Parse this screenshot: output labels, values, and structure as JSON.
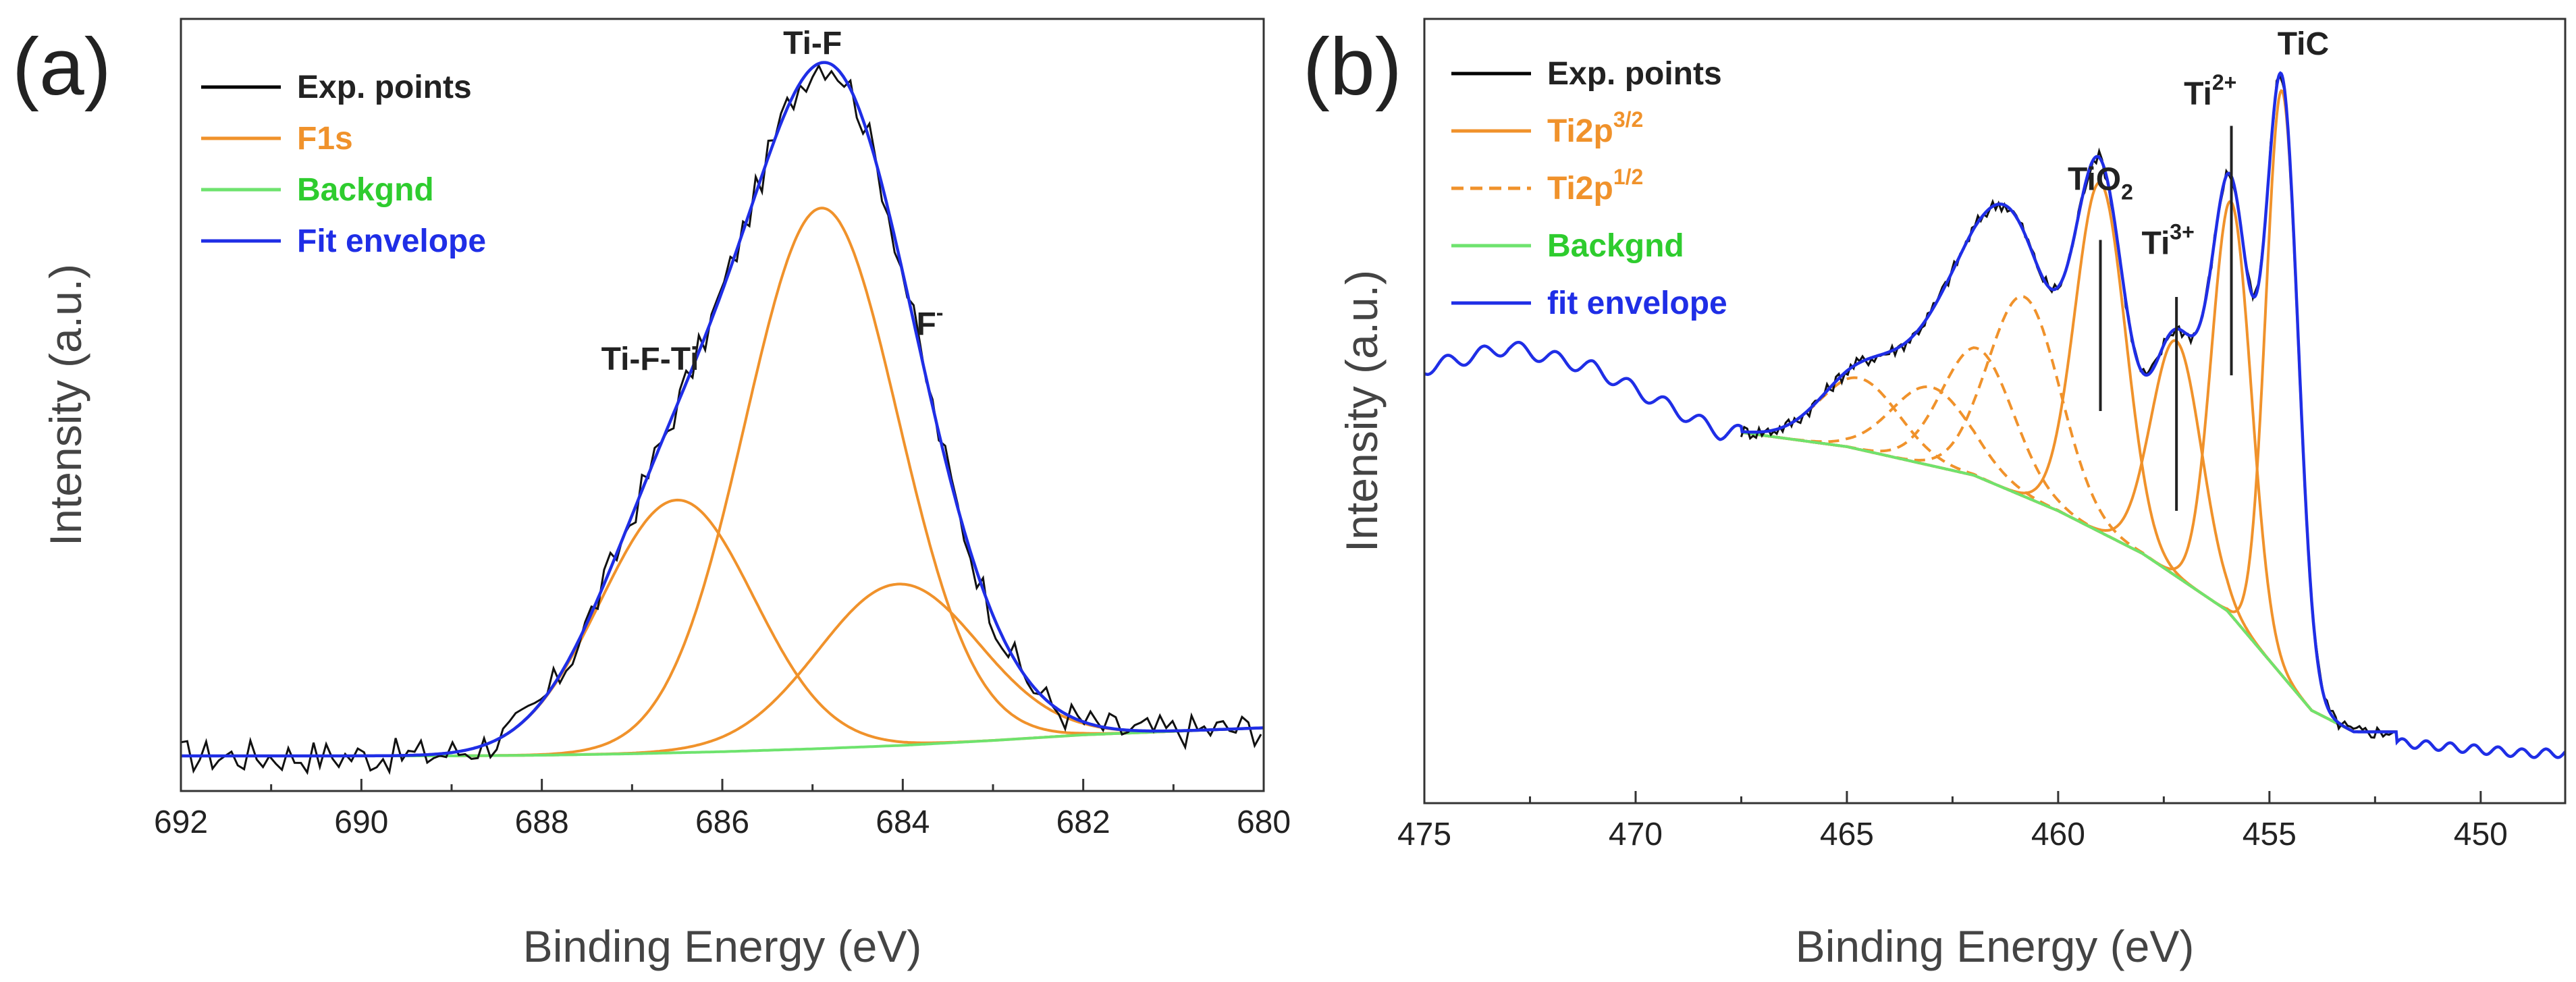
{
  "chart_data": [
    {
      "type": "line",
      "panel_label": "(a)",
      "xlabel": "Binding Energy (eV)",
      "ylabel": "Intensity (a.u.)",
      "xlim": [
        692,
        680
      ],
      "ylim": [
        -0.05,
        1.05
      ],
      "xticks": [
        692,
        690,
        688,
        686,
        684,
        682,
        680
      ],
      "x_reversed": true,
      "legend": [
        {
          "label": "Exp. points",
          "color": "#000000",
          "text_color": "#222222",
          "dashed": false
        },
        {
          "label": "F1s",
          "color": "#f0922b",
          "text_color": "#f0922b",
          "dashed": false
        },
        {
          "label": "Backgnd",
          "color": "#6ee36e",
          "text_color": "#2ecc2e",
          "dashed": false
        },
        {
          "label": "Fit envelope",
          "color": "#1f2ee6",
          "text_color": "#1f2ee6",
          "dashed": false
        }
      ],
      "colors": {
        "exp": "#111111",
        "component": "#f0922b",
        "background": "#6ee36e",
        "envelope": "#1f2ee6"
      },
      "background_curve": {
        "x": [
          692,
          689,
          688,
          687,
          686,
          685,
          684,
          683,
          682,
          680
        ],
        "y": [
          0.0,
          0.0,
          0.001,
          0.003,
          0.006,
          0.01,
          0.015,
          0.022,
          0.03,
          0.04
        ]
      },
      "components": [
        {
          "name": "Ti-F-Ti",
          "center": 686.5,
          "fwhm": 2.0,
          "height": 0.36
        },
        {
          "name": "Ti-F",
          "center": 684.9,
          "fwhm": 2.0,
          "height": 0.77
        },
        {
          "name": "F-",
          "center": 684.05,
          "fwhm": 2.1,
          "height": 0.23
        }
      ],
      "exp_noise": 0.025,
      "annotations": [
        {
          "text": "Ti-F-Ti",
          "sup": "",
          "x": 686.8,
          "y": 0.55
        },
        {
          "text": "Ti-F",
          "sup": "",
          "x": 685.0,
          "y": 1.0
        },
        {
          "text": "F",
          "sup": "-",
          "x": 683.7,
          "y": 0.6
        }
      ],
      "markers": []
    },
    {
      "type": "line",
      "panel_label": "(b)",
      "xlabel": "Binding Energy (eV)",
      "ylabel": "Intensity (a.u.)",
      "xlim": [
        475,
        448
      ],
      "ylim": [
        -0.05,
        1.05
      ],
      "xticks": [
        475,
        470,
        465,
        460,
        455,
        450
      ],
      "x_reversed": true,
      "legend": [
        {
          "label": "Exp. points",
          "color": "#000000",
          "text_color": "#222222",
          "dashed": false
        },
        {
          "label": "Ti2p",
          "sup": "3/2",
          "color": "#f0922b",
          "text_color": "#f0922b",
          "dashed": false
        },
        {
          "label": "Ti2p",
          "sup": "1/2",
          "color": "#f0922b",
          "text_color": "#f0922b",
          "dashed": true
        },
        {
          "label": "Backgnd",
          "color": "#6ee36e",
          "text_color": "#2ecc2e",
          "dashed": false
        },
        {
          "label": "fit envelope",
          "color": "#1f2ee6",
          "text_color": "#1f2ee6",
          "dashed": false
        }
      ],
      "colors": {
        "exp": "#111111",
        "component": "#f0922b",
        "background": "#6ee36e",
        "envelope": "#1f2ee6"
      },
      "background_curve": {
        "x": [
          467.5,
          465,
          462,
          460,
          458,
          456,
          455,
          454,
          453
        ],
        "y": [
          0.47,
          0.45,
          0.41,
          0.36,
          0.3,
          0.22,
          0.15,
          0.08,
          0.05
        ]
      },
      "envelope_left": {
        "x": [
          475,
          473,
          471,
          469,
          468
        ],
        "y": [
          0.56,
          0.59,
          0.56,
          0.5,
          0.47
        ]
      },
      "envelope_right": {
        "x": [
          453,
          451,
          449,
          448
        ],
        "y": [
          0.04,
          0.03,
          0.02,
          0.02
        ]
      },
      "components": [
        {
          "name": "TiC 3/2",
          "center": 454.7,
          "fwhm": 0.9,
          "height": 0.82,
          "dashed": false
        },
        {
          "name": "Ti2+ 3/2",
          "center": 455.9,
          "fwhm": 1.1,
          "height": 0.58,
          "dashed": false
        },
        {
          "name": "Ti3+ 3/2",
          "center": 457.2,
          "fwhm": 1.4,
          "height": 0.33,
          "dashed": false
        },
        {
          "name": "TiO2 3/2",
          "center": 459.0,
          "fwhm": 1.4,
          "height": 0.49,
          "dashed": false
        },
        {
          "name": "TiC 1/2",
          "center": 460.8,
          "fwhm": 2.0,
          "height": 0.28,
          "dashed": true
        },
        {
          "name": "Ti2+ 1/2",
          "center": 461.9,
          "fwhm": 2.0,
          "height": 0.18,
          "dashed": true
        },
        {
          "name": "Ti3+ 1/2",
          "center": 463.0,
          "fwhm": 2.2,
          "height": 0.11,
          "dashed": true
        },
        {
          "name": "TiO2 1/2",
          "center": 464.7,
          "fwhm": 2.2,
          "height": 0.1,
          "dashed": true
        }
      ],
      "exp_range": [
        467.5,
        452
      ],
      "exp_noise": 0.01,
      "annotations": [
        {
          "text": "TiC",
          "sup": "",
          "x": 454.2,
          "y": 1.0
        },
        {
          "text": "Ti",
          "sup": "2+",
          "x": 456.4,
          "y": 0.93
        },
        {
          "text": "Ti",
          "sup": "3+",
          "x": 457.4,
          "y": 0.72
        },
        {
          "text": "TiO",
          "sub": "2",
          "x": 459.0,
          "y": 0.81
        }
      ],
      "markers": [
        {
          "x": 459.0,
          "y1": 0.5,
          "y2": 0.74
        },
        {
          "x": 457.2,
          "y1": 0.36,
          "y2": 0.66
        },
        {
          "x": 455.9,
          "y1": 0.55,
          "y2": 0.9
        }
      ]
    }
  ]
}
